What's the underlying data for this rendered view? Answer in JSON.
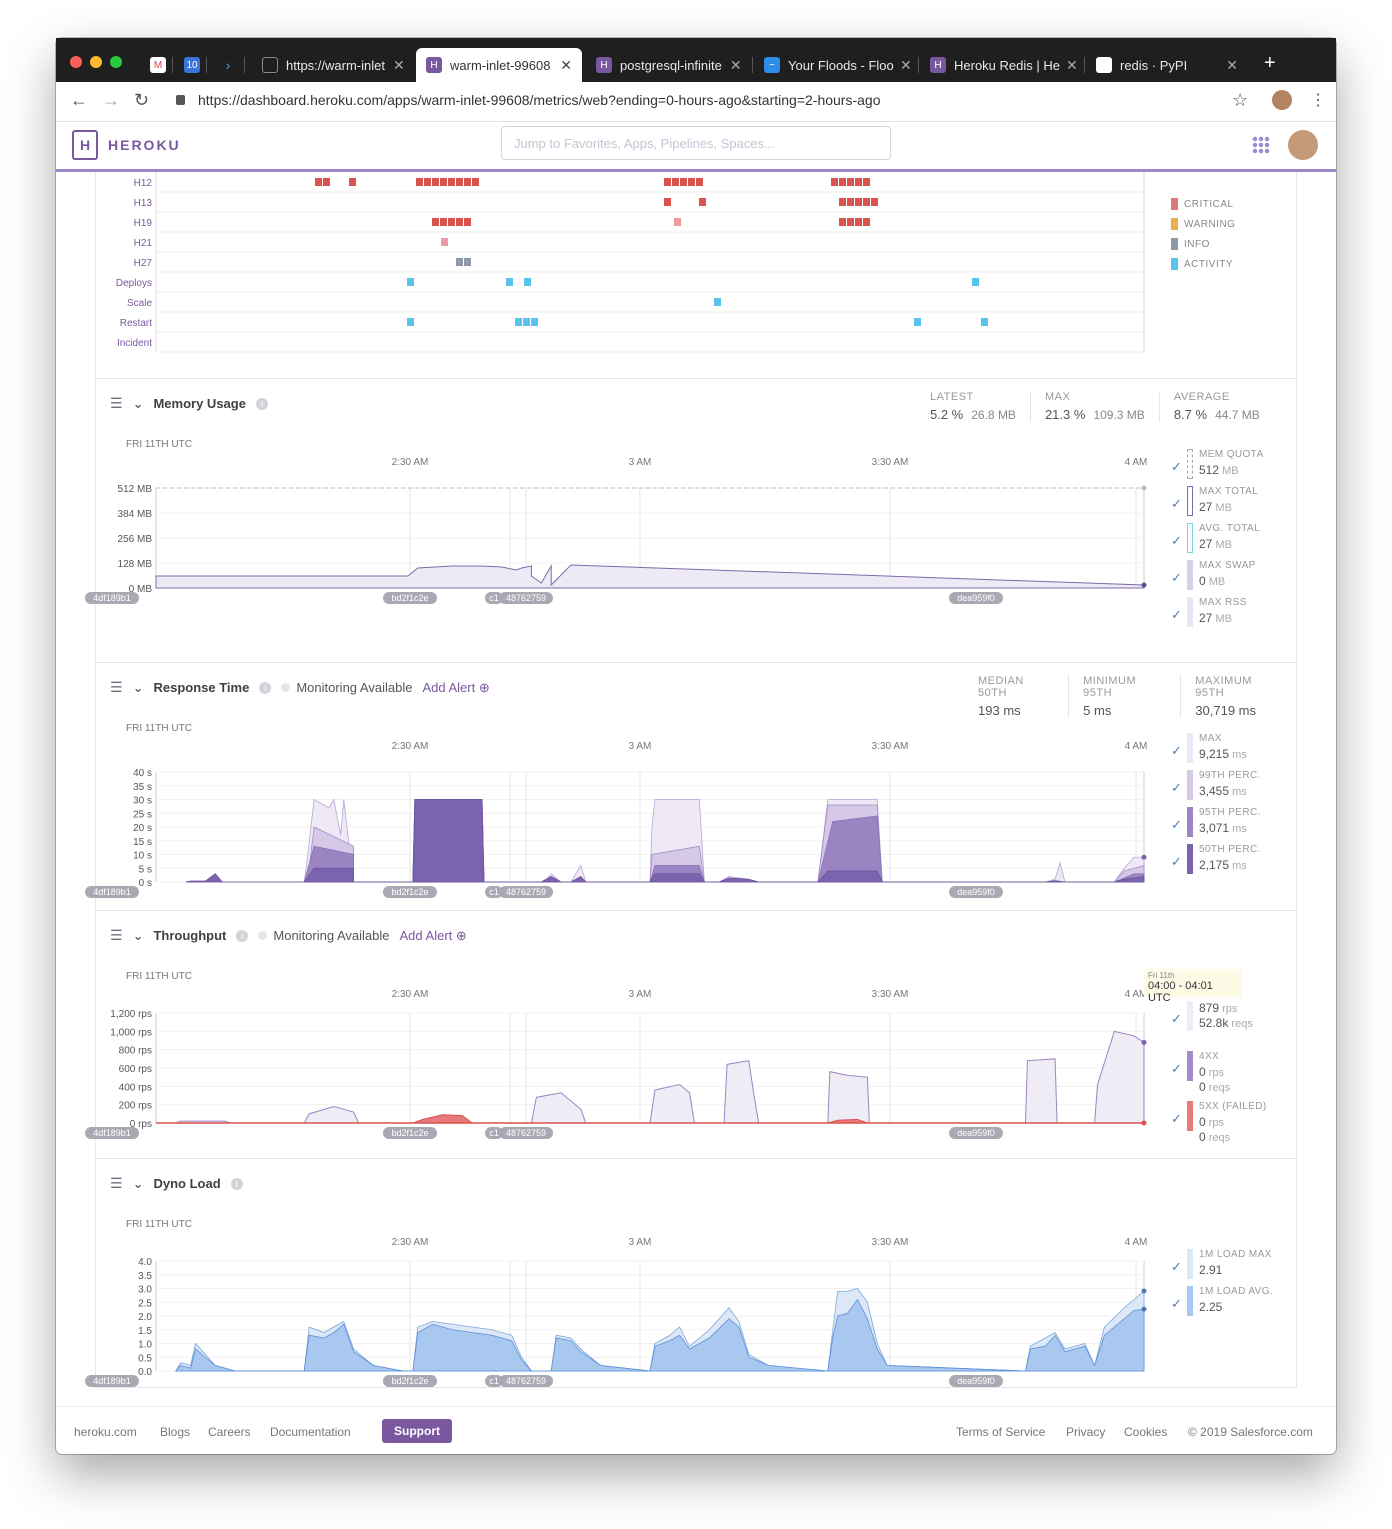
{
  "browser": {
    "tabs": [
      {
        "title": "",
        "icon": "gmail-icon"
      },
      {
        "title": "",
        "icon": "calendar-icon"
      },
      {
        "title": "",
        "icon": "terminal-icon"
      },
      {
        "title": "https://warm-inlet",
        "icon": "page-icon"
      },
      {
        "title": "warm-inlet-99608",
        "icon": "heroku-icon",
        "active": true
      },
      {
        "title": "postgresql-infinite",
        "icon": "heroku-icon"
      },
      {
        "title": "Your Floods - Floo",
        "icon": "floods-icon"
      },
      {
        "title": "Heroku Redis | He",
        "icon": "heroku-icon"
      },
      {
        "title": "redis · PyPI",
        "icon": "pypi-icon"
      }
    ],
    "url": "https://dashboard.heroku.com/apps/warm-inlet-99608/metrics/web?ending=0-hours-ago&starting=2-hours-ago"
  },
  "header": {
    "brand": "HEROKU",
    "search_placeholder": "Jump to Favorites, Apps, Pipelines, Spaces..."
  },
  "colors": {
    "purple": "#79589f",
    "critical": "#d9534f",
    "warning": "#f0ad4e",
    "info": "#8e9aac",
    "activity": "#57c4ee",
    "load": "#aecbf0"
  },
  "events": {
    "rows": [
      "H12",
      "H13",
      "H19",
      "H21",
      "H27",
      "Deploys",
      "Scale",
      "Restart",
      "Incident"
    ],
    "legend": [
      "CRITICAL",
      "WARNING",
      "INFO",
      "ACTIVITY"
    ]
  },
  "timeline": {
    "date": "FRI 11TH UTC",
    "ticks": [
      "2:30 AM",
      "3 AM",
      "3:30 AM",
      "4 AM"
    ],
    "releases": [
      "4df189b1",
      "bd2f1c2e",
      "c1",
      "48762759",
      "dea959f0"
    ]
  },
  "memory": {
    "title": "Memory Usage",
    "stats": [
      {
        "label": "LATEST",
        "pct": "5.2 %",
        "amt": "26.8 MB"
      },
      {
        "label": "MAX",
        "pct": "21.3 %",
        "amt": "109.3 MB"
      },
      {
        "label": "AVERAGE",
        "pct": "8.7 %",
        "amt": "44.7 MB"
      }
    ],
    "yticks": [
      "512 MB",
      "384 MB",
      "256 MB",
      "128 MB",
      "0 MB"
    ],
    "legend": [
      {
        "name": "MEM QUOTA",
        "value": "512",
        "unit": "MB"
      },
      {
        "name": "MAX TOTAL",
        "value": "27",
        "unit": "MB"
      },
      {
        "name": "AVG. TOTAL",
        "value": "27",
        "unit": "MB"
      },
      {
        "name": "MAX SWAP",
        "value": "0",
        "unit": "MB"
      },
      {
        "name": "MAX RSS",
        "value": "27",
        "unit": "MB"
      }
    ]
  },
  "response": {
    "title": "Response Time",
    "monitoring": "Monitoring Available",
    "add_alert": "Add Alert",
    "stats": [
      {
        "label": "MEDIAN 50TH",
        "value": "193",
        "unit": "ms"
      },
      {
        "label": "MINIMUM 95TH",
        "value": "5",
        "unit": "ms"
      },
      {
        "label": "MAXIMUM 95TH",
        "value": "30,719",
        "unit": "ms"
      }
    ],
    "yticks": [
      "40 s",
      "35 s",
      "30 s",
      "25 s",
      "20 s",
      "15 s",
      "10 s",
      "5 s",
      "0 s"
    ],
    "legend": [
      {
        "name": "MAX",
        "value": "9,215",
        "unit": "ms"
      },
      {
        "name": "99TH PERC.",
        "value": "3,455",
        "unit": "ms"
      },
      {
        "name": "95TH PERC.",
        "value": "3,071",
        "unit": "ms"
      },
      {
        "name": "50TH PERC.",
        "value": "2,175",
        "unit": "ms"
      }
    ]
  },
  "throughput": {
    "title": "Throughput",
    "monitoring": "Monitoring Available",
    "add_alert": "Add Alert",
    "yticks": [
      "1,200 rps",
      "1,000 rps",
      "800 rps",
      "600 rps",
      "400 rps",
      "200 rps",
      "0 rps"
    ],
    "tooltip": {
      "date": "Fri 11th",
      "range": "04:00 - 04:01 UTC"
    },
    "legend": [
      {
        "name": "",
        "value": "879",
        "unit": "rps",
        "value2": "52.8k",
        "unit2": "reqs"
      },
      {
        "name": "4XX",
        "value": "0",
        "unit": "rps",
        "value2": "0",
        "unit2": "reqs"
      },
      {
        "name": "5XX (FAILED)",
        "value": "0",
        "unit": "rps",
        "value2": "0",
        "unit2": "reqs"
      }
    ]
  },
  "dyno": {
    "title": "Dyno Load",
    "yticks": [
      "4.0",
      "3.5",
      "3.0",
      "2.5",
      "2.0",
      "1.5",
      "1.0",
      "0.5",
      "0.0"
    ],
    "legend": [
      {
        "name": "1M LOAD MAX",
        "value": "2.91"
      },
      {
        "name": "1M LOAD AVG.",
        "value": "2.25"
      }
    ]
  },
  "footer": {
    "links": [
      "heroku.com",
      "Blogs",
      "Careers",
      "Documentation"
    ],
    "support": "Support",
    "right": [
      "Terms of Service",
      "Privacy",
      "Cookies",
      "© 2019 Salesforce.com"
    ]
  }
}
